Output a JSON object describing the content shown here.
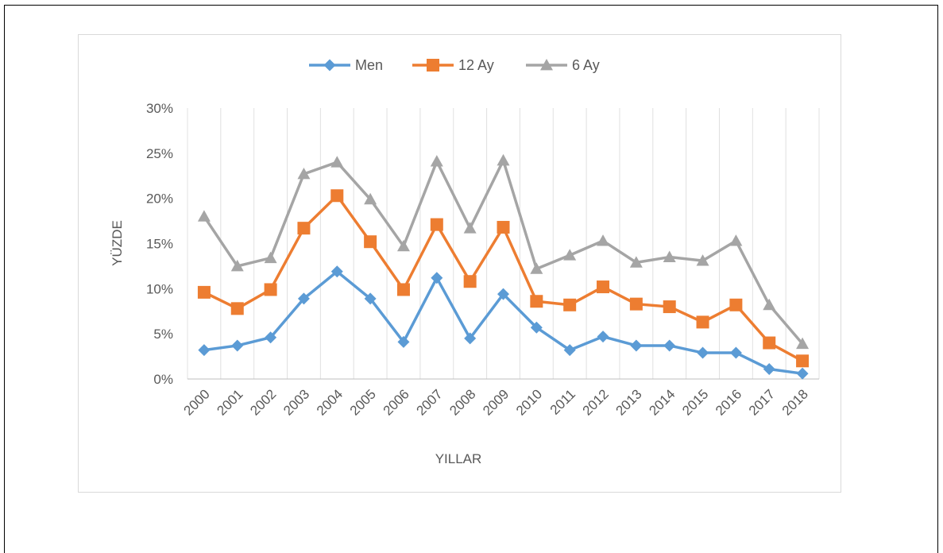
{
  "chart_data": {
    "type": "line",
    "categories": [
      "2000",
      "2001",
      "2002",
      "2003",
      "2004",
      "2005",
      "2006",
      "2007",
      "2008",
      "2009",
      "2010",
      "2011",
      "2012",
      "2013",
      "2014",
      "2015",
      "2016",
      "2017",
      "2018"
    ],
    "xlabel": "YILLAR",
    "ylabel": "YÜZDE",
    "ylim": [
      0,
      30
    ],
    "yticks": [
      "0%",
      "5%",
      "10%",
      "15%",
      "20%",
      "25%",
      "30%"
    ],
    "grid": "vertical",
    "legend_position": "top",
    "series": [
      {
        "name": "Men",
        "color": "#5b9bd5",
        "marker": "diamond",
        "values": [
          3.2,
          3.7,
          4.6,
          8.9,
          11.9,
          8.9,
          4.1,
          11.2,
          4.5,
          9.4,
          5.7,
          3.2,
          4.7,
          3.7,
          3.7,
          2.9,
          2.9,
          1.1,
          0.6
        ]
      },
      {
        "name": "12 Ay",
        "color": "#ed7d31",
        "marker": "square",
        "values": [
          9.6,
          7.8,
          9.9,
          16.7,
          20.3,
          15.2,
          9.9,
          17.1,
          10.8,
          16.8,
          8.6,
          8.2,
          10.2,
          8.3,
          8.0,
          6.3,
          8.2,
          4.0,
          2.0
        ]
      },
      {
        "name": "6 Ay",
        "color": "#a5a5a5",
        "marker": "triangle",
        "values": [
          18.0,
          12.5,
          13.4,
          22.7,
          24.0,
          19.9,
          14.7,
          24.1,
          16.7,
          24.2,
          12.2,
          13.7,
          15.3,
          12.9,
          13.5,
          13.1,
          15.3,
          8.2,
          3.9
        ]
      }
    ]
  }
}
